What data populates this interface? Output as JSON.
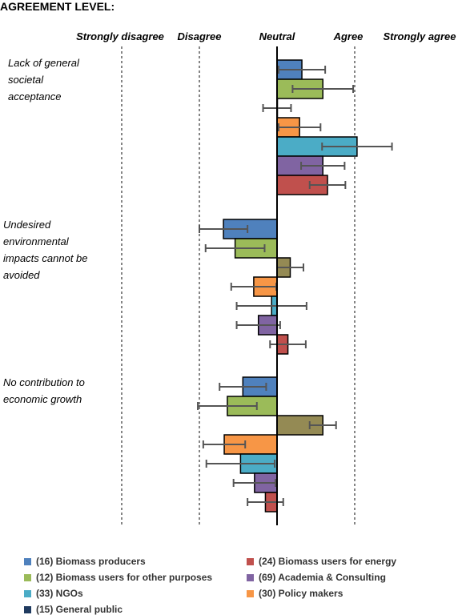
{
  "chart_data": {
    "type": "bar",
    "orientation": "horizontal",
    "title": "AGREEMENT LEVEL:",
    "x_scale_labels": [
      "Strongly disagree",
      "Disagree",
      "Neutral",
      "Agree",
      "Strongly agree"
    ],
    "x_range": [
      -2,
      2
    ],
    "grid": "dashed vertical lines at Strongly disagree, Disagree and Agree",
    "categories": [
      "Lack of general societal acceptance",
      "Undesired environmental impacts cannot be avoided",
      "No contribution to economic growth"
    ],
    "series": [
      {
        "name": "(16) Biomass producers",
        "color": "#4f81bd",
        "values": [
          0.32,
          -0.69,
          -0.44
        ],
        "error": [
          0.3,
          0.31,
          0.3
        ]
      },
      {
        "name": "(12) Biomass users for other purposes",
        "color": "#9bbb59",
        "values": [
          0.59,
          -0.54,
          -0.64
        ],
        "error": [
          0.39,
          0.38,
          0.38
        ]
      },
      {
        "name": "(15) General public",
        "color": "#948a54",
        "values": [
          0.0,
          0.17,
          0.59
        ],
        "error": [
          0.18,
          0.17,
          0.17
        ]
      },
      {
        "name": "(30) Policy makers",
        "color": "#f79646",
        "values": [
          0.29,
          -0.3,
          -0.68
        ],
        "error": [
          0.27,
          0.29,
          0.27
        ]
      },
      {
        "name": "(33) NGOs",
        "color": "#4bacc6",
        "values": [
          1.03,
          -0.07,
          -0.47
        ],
        "error": [
          0.45,
          0.45,
          0.44
        ]
      },
      {
        "name": "(69) Academia & Consulting",
        "color": "#8064a2",
        "values": [
          0.59,
          -0.24,
          -0.29
        ],
        "error": [
          0.28,
          0.28,
          0.27
        ]
      },
      {
        "name": "(24) Biomass users for energy",
        "color": "#c0504d",
        "values": [
          0.65,
          0.14,
          -0.15
        ],
        "error": [
          0.23,
          0.23,
          0.23
        ]
      }
    ],
    "legend_position": "bottom"
  },
  "legend_order": [
    "(16) Biomass producers",
    "(24) Biomass users for energy",
    "(12) Biomass users for other purposes",
    "(69) Academia & Consulting",
    "(33) NGOs",
    "(30) Policy makers",
    "(15) General public"
  ],
  "legend_swatch_colors": {
    "(15) General public": "#1f3a5f"
  },
  "category_label_lines": [
    [
      "Lack of general",
      "societal",
      "acceptance"
    ],
    [
      "Undesired",
      "environmental",
      "impacts cannot be",
      "avoided"
    ],
    [
      "No contribution to",
      "economic growth"
    ]
  ]
}
